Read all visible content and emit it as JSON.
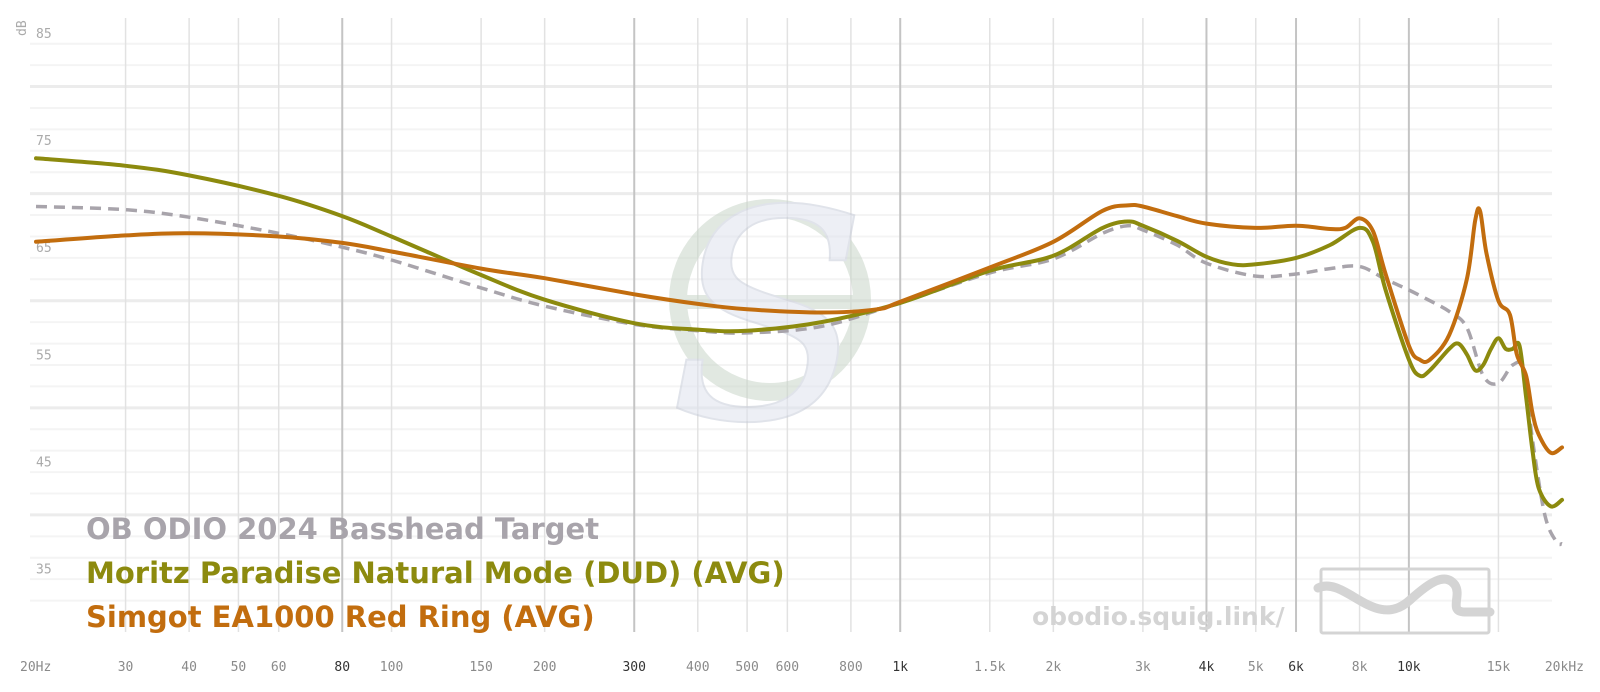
{
  "chart_data": {
    "type": "line",
    "title": "",
    "xlabel": "",
    "ylabel": "dB",
    "x_scale": "log",
    "xlim": [
      20,
      20000
    ],
    "ylim": [
      30,
      85
    ],
    "grid": true,
    "x_ticks": [
      {
        "value": 20,
        "label": "20Hz",
        "major": false
      },
      {
        "value": 30,
        "label": "30",
        "major": false
      },
      {
        "value": 40,
        "label": "40",
        "major": false
      },
      {
        "value": 50,
        "label": "50",
        "major": false
      },
      {
        "value": 60,
        "label": "60",
        "major": false
      },
      {
        "value": 80,
        "label": "80",
        "major": true
      },
      {
        "value": 100,
        "label": "100",
        "major": false
      },
      {
        "value": 150,
        "label": "150",
        "major": false
      },
      {
        "value": 200,
        "label": "200",
        "major": false
      },
      {
        "value": 300,
        "label": "300",
        "major": true
      },
      {
        "value": 400,
        "label": "400",
        "major": false
      },
      {
        "value": 500,
        "label": "500",
        "major": false
      },
      {
        "value": 600,
        "label": "600",
        "major": false
      },
      {
        "value": 800,
        "label": "800",
        "major": false
      },
      {
        "value": 1000,
        "label": "1k",
        "major": true
      },
      {
        "value": 1500,
        "label": "1.5k",
        "major": false
      },
      {
        "value": 2000,
        "label": "2k",
        "major": false
      },
      {
        "value": 3000,
        "label": "3k",
        "major": false
      },
      {
        "value": 4000,
        "label": "4k",
        "major": true
      },
      {
        "value": 5000,
        "label": "5k",
        "major": false
      },
      {
        "value": 6000,
        "label": "6k",
        "major": true
      },
      {
        "value": 8000,
        "label": "8k",
        "major": false
      },
      {
        "value": 10000,
        "label": "10k",
        "major": true
      },
      {
        "value": 15000,
        "label": "15k",
        "major": false
      },
      {
        "value": 20000,
        "label": "20kHz",
        "major": false
      }
    ],
    "y_ticks": [
      {
        "value": 85,
        "label": "85"
      },
      {
        "value": 75,
        "label": "75"
      },
      {
        "value": 65,
        "label": "65"
      },
      {
        "value": 55,
        "label": "55"
      },
      {
        "value": 45,
        "label": "45"
      },
      {
        "value": 35,
        "label": "35"
      }
    ],
    "legend_placement": "bottom-left",
    "series": [
      {
        "name": "OB ODIO 2024 Basshead Target",
        "color": "#a8a4ab",
        "dashed": true,
        "points": [
          [
            20,
            68.8
          ],
          [
            30,
            68.5
          ],
          [
            40,
            67.8
          ],
          [
            60,
            66.3
          ],
          [
            80,
            65.0
          ],
          [
            100,
            63.8
          ],
          [
            150,
            61.2
          ],
          [
            200,
            59.5
          ],
          [
            300,
            57.8
          ],
          [
            400,
            57.2
          ],
          [
            500,
            57.0
          ],
          [
            700,
            57.6
          ],
          [
            1000,
            59.8
          ],
          [
            1500,
            62.6
          ],
          [
            2000,
            63.9
          ],
          [
            2500,
            66.3
          ],
          [
            2800,
            67.0
          ],
          [
            3000,
            66.6
          ],
          [
            3500,
            65.2
          ],
          [
            4000,
            63.5
          ],
          [
            5000,
            62.3
          ],
          [
            6000,
            62.5
          ],
          [
            7000,
            63.0
          ],
          [
            8000,
            63.2
          ],
          [
            9000,
            62.0
          ],
          [
            10000,
            61.0
          ],
          [
            11000,
            60.0
          ],
          [
            12000,
            59.0
          ],
          [
            13000,
            57.5
          ],
          [
            14000,
            53.0
          ],
          [
            15000,
            52.3
          ],
          [
            16000,
            54.0
          ],
          [
            16800,
            53.5
          ],
          [
            17500,
            47.0
          ],
          [
            18500,
            40.0
          ],
          [
            19500,
            37.5
          ],
          [
            20000,
            37.3
          ]
        ]
      },
      {
        "name": "Moritz Paradise Natural Mode (DUD) (AVG)",
        "color": "#8c8a0e",
        "dashed": false,
        "points": [
          [
            20,
            73.3
          ],
          [
            30,
            72.6
          ],
          [
            40,
            71.7
          ],
          [
            60,
            69.8
          ],
          [
            80,
            67.9
          ],
          [
            100,
            66.0
          ],
          [
            150,
            62.4
          ],
          [
            200,
            60.1
          ],
          [
            300,
            57.9
          ],
          [
            400,
            57.3
          ],
          [
            500,
            57.2
          ],
          [
            700,
            58.0
          ],
          [
            1000,
            59.8
          ],
          [
            1500,
            62.8
          ],
          [
            2000,
            64.2
          ],
          [
            2500,
            66.8
          ],
          [
            2800,
            67.4
          ],
          [
            3000,
            67.0
          ],
          [
            3500,
            65.6
          ],
          [
            4000,
            64.1
          ],
          [
            4500,
            63.4
          ],
          [
            5000,
            63.4
          ],
          [
            6000,
            64.0
          ],
          [
            7000,
            65.2
          ],
          [
            8000,
            66.8
          ],
          [
            8500,
            65.5
          ],
          [
            9000,
            61.0
          ],
          [
            10000,
            54.5
          ],
          [
            10500,
            53.0
          ],
          [
            11000,
            53.5
          ],
          [
            12000,
            55.5
          ],
          [
            12500,
            56.0
          ],
          [
            13000,
            55.0
          ],
          [
            13500,
            53.5
          ],
          [
            14000,
            54.0
          ],
          [
            14500,
            55.5
          ],
          [
            15000,
            56.5
          ],
          [
            15500,
            55.5
          ],
          [
            16000,
            55.5
          ],
          [
            16500,
            55.8
          ],
          [
            17000,
            51.0
          ],
          [
            17500,
            46.0
          ],
          [
            18000,
            42.5
          ],
          [
            19000,
            40.8
          ],
          [
            20000,
            41.4
          ]
        ]
      },
      {
        "name": "Simgot EA1000 Red Ring (AVG)",
        "color": "#c26d0e",
        "dashed": false,
        "points": [
          [
            20,
            65.5
          ],
          [
            30,
            66.1
          ],
          [
            40,
            66.3
          ],
          [
            60,
            66.0
          ],
          [
            80,
            65.4
          ],
          [
            100,
            64.6
          ],
          [
            150,
            63.0
          ],
          [
            200,
            62.1
          ],
          [
            300,
            60.6
          ],
          [
            400,
            59.7
          ],
          [
            500,
            59.2
          ],
          [
            700,
            58.9
          ],
          [
            900,
            59.2
          ],
          [
            1000,
            59.9
          ],
          [
            1500,
            63.1
          ],
          [
            2000,
            65.5
          ],
          [
            2500,
            68.4
          ],
          [
            2800,
            68.9
          ],
          [
            3000,
            68.8
          ],
          [
            3500,
            67.9
          ],
          [
            4000,
            67.2
          ],
          [
            5000,
            66.8
          ],
          [
            6000,
            67.0
          ],
          [
            7000,
            66.7
          ],
          [
            7500,
            66.8
          ],
          [
            8000,
            67.7
          ],
          [
            8500,
            66.5
          ],
          [
            9000,
            62.5
          ],
          [
            10000,
            55.8
          ],
          [
            10500,
            54.5
          ],
          [
            11000,
            54.5
          ],
          [
            12000,
            56.8
          ],
          [
            13000,
            62.0
          ],
          [
            13500,
            67.5
          ],
          [
            13800,
            68.4
          ],
          [
            14200,
            64.5
          ],
          [
            15000,
            60.0
          ],
          [
            15800,
            58.7
          ],
          [
            16300,
            55.0
          ],
          [
            17000,
            53.0
          ],
          [
            17500,
            49.5
          ],
          [
            18000,
            47.5
          ],
          [
            19000,
            45.8
          ],
          [
            20000,
            46.3
          ]
        ]
      }
    ]
  },
  "watermark": {
    "url_text": "obodio.squig.link/",
    "logo_text": "S"
  }
}
